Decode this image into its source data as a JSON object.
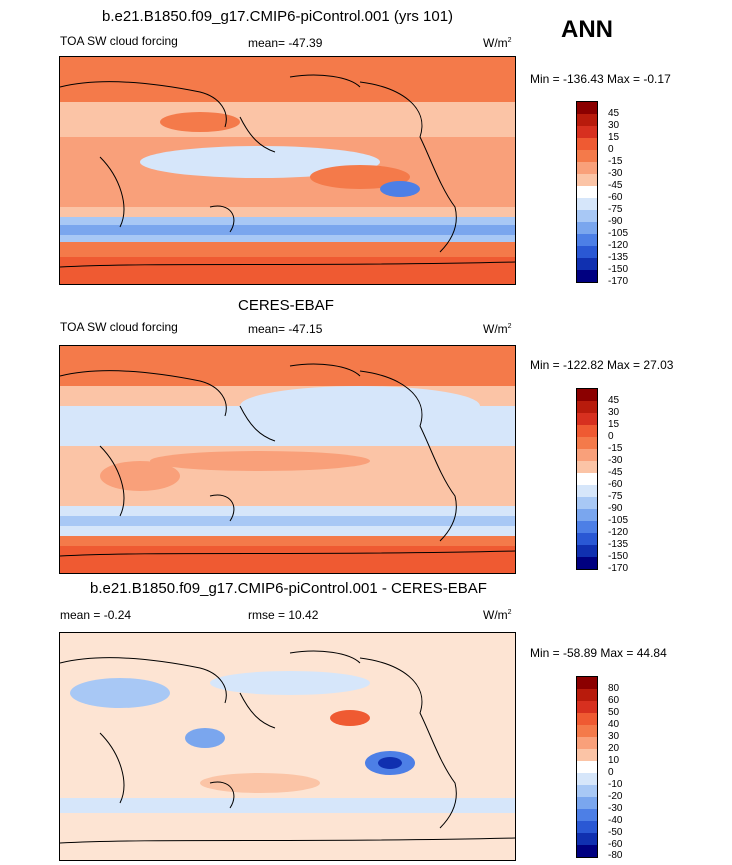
{
  "case_title": "b.e21.B1850.f09_g17.CMIP6-piControl.001 (yrs 101)",
  "season": "ANN",
  "obs_title": "CERES-EBAF",
  "diff_title": "b.e21.B1850.f09_g17.CMIP6-piControl.001 - CERES-EBAF",
  "panels": [
    {
      "variable": "TOA SW cloud forcing",
      "stat": "mean= -47.39",
      "units_base": "W/m",
      "units_exp": "2",
      "minmax": "Min = -136.43 Max =  -0.17",
      "levels": [
        "45",
        "30",
        "15",
        "0",
        "-15",
        "-30",
        "-45",
        "-60",
        "-75",
        "-90",
        "-105",
        "-120",
        "-135",
        "-150",
        "-170"
      ]
    },
    {
      "variable": "TOA SW cloud forcing",
      "stat": "mean= -47.15",
      "units_base": "W/m",
      "units_exp": "2",
      "minmax": "Min = -122.82 Max =  27.03",
      "levels": [
        "45",
        "30",
        "15",
        "0",
        "-15",
        "-30",
        "-45",
        "-60",
        "-75",
        "-90",
        "-105",
        "-120",
        "-135",
        "-150",
        "-170"
      ]
    },
    {
      "variable": "mean =  -0.24",
      "stat": "rmse =  10.42",
      "units_base": "W/m",
      "units_exp": "2",
      "minmax": "Min = -58.89 Max =  44.84",
      "levels": [
        "80",
        "60",
        "50",
        "40",
        "30",
        "20",
        "10",
        "0",
        "-10",
        "-20",
        "-30",
        "-40",
        "-50",
        "-60",
        "-80"
      ]
    }
  ],
  "colors": {
    "palette": [
      "#8b0000",
      "#b81b0c",
      "#d7301f",
      "#ef5a32",
      "#f47a4a",
      "#f9a07a",
      "#fbc4a6",
      "#fde4d3",
      "#ffffff",
      "#d6e6fa",
      "#a8c8f5",
      "#7aa6ee",
      "#4d7fe6",
      "#2a58d4",
      "#1030b0",
      "#0a1a8c",
      "#000080"
    ],
    "land": "#000000"
  }
}
